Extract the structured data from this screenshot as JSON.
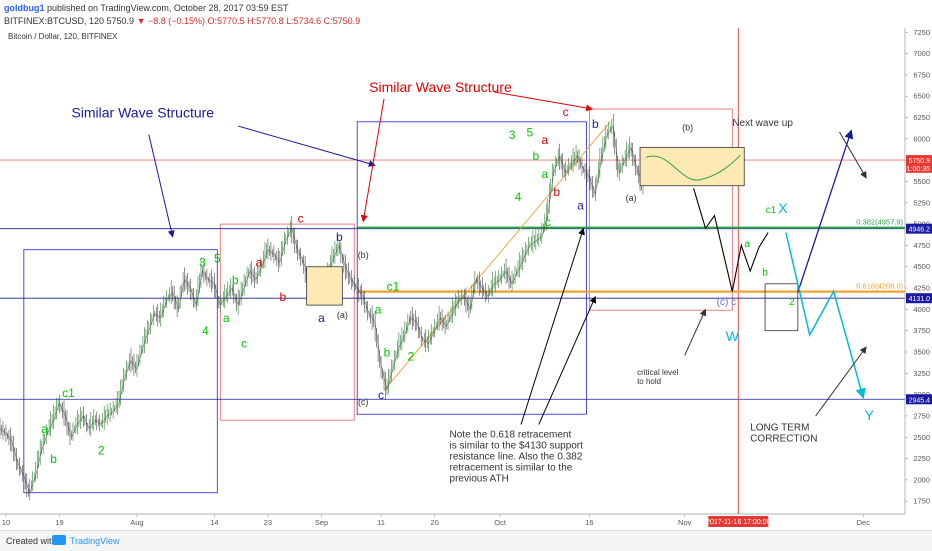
{
  "header": {
    "author": "goldbug1",
    "publish_text": "published on TradingView.com, October 28, 2017 03:59 EST",
    "symbol_line": "BITFINEX:BTCUSD, 120  5750.9",
    "change": "▼ −8.8 (−0.15%)",
    "ohlc": "O:5770.5 H:5770.8 L:5734.6 C:5750.9"
  },
  "footer": {
    "created_with": "Created with",
    "brand": "TradingView"
  },
  "colors": {
    "green": "#00c800",
    "red": "#e00000",
    "blue": "#1a1aa0",
    "cyan": "#00bcd4",
    "orange": "#f0a030",
    "fib_green": "#2e9e4a"
  },
  "chart_data": {
    "type": "candlestick",
    "title": "Bitcoin / Dollar, 120, BITFINEX",
    "y_ticks": [
      1750,
      2000,
      2250,
      2500,
      2750,
      3000,
      3250,
      3500,
      3750,
      4000,
      4250,
      4500,
      4750,
      5000,
      5250,
      5500,
      5750,
      6000,
      6250,
      6500,
      6750,
      7000,
      7250
    ],
    "ylim": [
      1600,
      7300
    ],
    "x_ticks": [
      {
        "label": "10",
        "x": 0.0
      },
      {
        "label": "19",
        "x": 9.0
      },
      {
        "label": "Aug",
        "x": 22.0
      },
      {
        "label": "14",
        "x": 35.0
      },
      {
        "label": "23",
        "x": 44.0
      },
      {
        "label": "Sep",
        "x": 53.0
      },
      {
        "label": "11",
        "x": 63.0
      },
      {
        "label": "20",
        "x": 72.0
      },
      {
        "label": "Oct",
        "x": 83.0
      },
      {
        "label": "16",
        "x": 98.0
      },
      {
        "label": "Nov",
        "x": 114.0
      },
      {
        "label": "Dec",
        "x": 144.0
      }
    ],
    "x_range": [
      -1,
      151
    ],
    "price_tags": [
      {
        "value": "5750.9",
        "price": 5750.9,
        "color": "#e53935"
      },
      {
        "value": "01:00:35",
        "price": 5660,
        "color": "#e53935"
      },
      {
        "value": "4946.2",
        "price": 4946.2,
        "color": "#1a1aa0"
      },
      {
        "value": "4131.0",
        "price": 4131,
        "color": "#1a1aa0"
      },
      {
        "value": "2945.4",
        "price": 2945.4,
        "color": "#1a1aa0"
      }
    ],
    "date_tag": {
      "label": "2017-11-16 17:00:00",
      "x": 123.0
    },
    "hlines": [
      {
        "price": 5750.9,
        "color": "#e57373",
        "width": 0.8
      },
      {
        "price": 4946.2,
        "color": "#1a1aa0",
        "width": 0.8
      },
      {
        "price": 4131,
        "color": "#1a1aa0",
        "width": 0.8
      },
      {
        "price": 2945.4,
        "color": "#1a1aa0",
        "width": 0.8
      }
    ],
    "vlines": [
      {
        "x": 123.0,
        "color": "#e53935"
      }
    ],
    "price_path": [
      [
        -1,
        2600
      ],
      [
        0,
        2550
      ],
      [
        1,
        2450
      ],
      [
        2,
        2200
      ],
      [
        3,
        2050
      ],
      [
        4,
        1850
      ],
      [
        5,
        2050
      ],
      [
        6,
        2350
      ],
      [
        7,
        2550
      ],
      [
        8,
        2700
      ],
      [
        9,
        2900
      ],
      [
        10,
        2750
      ],
      [
        11,
        2500
      ],
      [
        12,
        2650
      ],
      [
        13,
        2750
      ],
      [
        14,
        2600
      ],
      [
        15,
        2700
      ],
      [
        16,
        2650
      ],
      [
        17,
        2750
      ],
      [
        18,
        2800
      ],
      [
        19,
        2900
      ],
      [
        20,
        3200
      ],
      [
        21,
        3400
      ],
      [
        22,
        3300
      ],
      [
        23,
        3550
      ],
      [
        24,
        3750
      ],
      [
        25,
        3950
      ],
      [
        26,
        3900
      ],
      [
        27,
        4100
      ],
      [
        28,
        4200
      ],
      [
        29,
        4000
      ],
      [
        30,
        4350
      ],
      [
        31,
        4250
      ],
      [
        32,
        4050
      ],
      [
        33,
        4450
      ],
      [
        34,
        4350
      ],
      [
        35,
        4300
      ],
      [
        36,
        4050
      ],
      [
        37,
        4150
      ],
      [
        38,
        4250
      ],
      [
        39,
        4050
      ],
      [
        40,
        4250
      ],
      [
        41,
        4450
      ],
      [
        42,
        4350
      ],
      [
        43,
        4500
      ],
      [
        44,
        4700
      ],
      [
        45,
        4650
      ],
      [
        46,
        4550
      ],
      [
        47,
        4800
      ],
      [
        48,
        4950
      ],
      [
        49,
        4700
      ],
      [
        50,
        4550
      ],
      [
        51,
        4300
      ],
      [
        52,
        4350
      ],
      [
        53,
        4150
      ],
      [
        54,
        4400
      ],
      [
        55,
        4600
      ],
      [
        56,
        4750
      ],
      [
        57,
        4500
      ],
      [
        58,
        4350
      ],
      [
        59,
        4250
      ],
      [
        60,
        4150
      ],
      [
        61,
        3950
      ],
      [
        62,
        3850
      ],
      [
        63,
        3350
      ],
      [
        64,
        3050
      ],
      [
        65,
        3300
      ],
      [
        66,
        3550
      ],
      [
        67,
        3700
      ],
      [
        68,
        3900
      ],
      [
        69,
        3850
      ],
      [
        70,
        3650
      ],
      [
        71,
        3600
      ],
      [
        72,
        3750
      ],
      [
        73,
        3900
      ],
      [
        74,
        3800
      ],
      [
        75,
        3950
      ],
      [
        76,
        4100
      ],
      [
        77,
        4150
      ],
      [
        78,
        4000
      ],
      [
        79,
        4350
      ],
      [
        80,
        4250
      ],
      [
        81,
        4150
      ],
      [
        82,
        4300
      ],
      [
        83,
        4350
      ],
      [
        84,
        4450
      ],
      [
        85,
        4300
      ],
      [
        86,
        4450
      ],
      [
        87,
        4600
      ],
      [
        88,
        4750
      ],
      [
        89,
        4800
      ],
      [
        90,
        4850
      ],
      [
        91,
        5100
      ],
      [
        92,
        5600
      ],
      [
        93,
        5800
      ],
      [
        94,
        5600
      ],
      [
        95,
        5700
      ],
      [
        96,
        5800
      ],
      [
        97,
        5650
      ],
      [
        98,
        5550
      ],
      [
        99,
        5350
      ],
      [
        100,
        5750
      ],
      [
        101,
        6050
      ],
      [
        102,
        6150
      ],
      [
        103,
        5600
      ],
      [
        104,
        5750
      ],
      [
        105,
        5900
      ],
      [
        106,
        5650
      ],
      [
        107,
        5450
      ],
      [
        108,
        5750
      ],
      [
        109,
        5750
      ]
    ],
    "boxes": [
      {
        "x0": 3.0,
        "x1": 35.5,
        "p0": 1850,
        "p1": 4700,
        "color": "#3a3ae0"
      },
      {
        "x0": 36.0,
        "x1": 58.5,
        "p0": 2700,
        "p1": 5000,
        "color": "#e57373"
      },
      {
        "x0": 59.0,
        "x1": 97.5,
        "p0": 2770,
        "p1": 6200,
        "color": "#3a3ae0"
      },
      {
        "x0": 98.0,
        "x1": 122.0,
        "p0": 3990,
        "p1": 6350,
        "color": "#e57373"
      }
    ],
    "small_boxes": [
      {
        "x0": 50.5,
        "x1": 56.5,
        "p0": 4050,
        "p1": 4500,
        "fill": "#fde9b3",
        "stroke": "#333"
      },
      {
        "x0": 106.5,
        "x1": 124.0,
        "p0": 5450,
        "p1": 5900,
        "fill": "#fde9b3",
        "stroke": "#333"
      },
      {
        "x0": 127.5,
        "x1": 133.0,
        "p0": 3750,
        "p1": 4300,
        "fill": "none",
        "stroke": "#333"
      }
    ],
    "fib_lines": [
      {
        "price": 4957.9,
        "x0": 59.0,
        "x1": 151.0,
        "color": "#2e9e4a",
        "label": "0.382(4957.9)"
      },
      {
        "price": 4208.0,
        "x0": 59.0,
        "x1": 151.0,
        "color": "#f0a030",
        "label": "0.618(4208.0)"
      }
    ],
    "fib_diagonal": [
      [
        63.5,
        3050
      ],
      [
        101.5,
        6200
      ]
    ],
    "wave_labels": [
      {
        "text": "a",
        "x": 6.5,
        "p": 2550,
        "color": "#00c800",
        "size": 12
      },
      {
        "text": "b",
        "x": 8.0,
        "p": 2200,
        "color": "#00c800",
        "size": 12
      },
      {
        "text": "c1",
        "x": 10.5,
        "p": 2970,
        "color": "#00c800",
        "size": 12
      },
      {
        "text": "2",
        "x": 16.0,
        "p": 2300,
        "color": "#00c800",
        "size": 12
      },
      {
        "text": "3",
        "x": 33.0,
        "p": 4500,
        "color": "#00c800",
        "size": 12
      },
      {
        "text": "5",
        "x": 35.5,
        "p": 4550,
        "color": "#00c800",
        "size": 12
      },
      {
        "text": "b",
        "x": 38.5,
        "p": 4300,
        "color": "#00c800",
        "size": 12
      },
      {
        "text": "a",
        "x": 37.0,
        "p": 3850,
        "color": "#00c800",
        "size": 12
      },
      {
        "text": "4",
        "x": 33.5,
        "p": 3700,
        "color": "#00c800",
        "size": 12
      },
      {
        "text": "c",
        "x": 40.0,
        "p": 3550,
        "color": "#00c800",
        "size": 12
      },
      {
        "text": "c",
        "x": 49.5,
        "p": 5020,
        "color": "#e00000",
        "size": 12
      },
      {
        "text": "a",
        "x": 42.5,
        "p": 4500,
        "color": "#e00000",
        "size": 12
      },
      {
        "text": "b",
        "x": 46.5,
        "p": 4100,
        "color": "#e00000",
        "size": 12
      },
      {
        "text": "b",
        "x": 56.0,
        "p": 4800,
        "color": "#1a1aa0",
        "size": 12
      },
      {
        "text": "a",
        "x": 53.0,
        "p": 3850,
        "color": "#1a1aa0",
        "size": 12
      },
      {
        "text": "(b)",
        "x": 60.0,
        "p": 4600,
        "color": "#333",
        "size": 9
      },
      {
        "text": "(a)",
        "x": 56.5,
        "p": 3900,
        "color": "#333",
        "size": 9
      },
      {
        "text": "(c)",
        "x": 60.0,
        "p": 2880,
        "color": "#333",
        "size": 9
      },
      {
        "text": "c",
        "x": 63.0,
        "p": 2950,
        "color": "#1a1aa0",
        "size": 12
      },
      {
        "text": "a",
        "x": 62.5,
        "p": 3950,
        "color": "#00c800",
        "size": 12
      },
      {
        "text": "c1",
        "x": 65.0,
        "p": 4220,
        "color": "#00c800",
        "size": 12
      },
      {
        "text": "b",
        "x": 64.0,
        "p": 3450,
        "color": "#00c800",
        "size": 12
      },
      {
        "text": "2",
        "x": 68.0,
        "p": 3400,
        "color": "#00c800",
        "size": 12
      },
      {
        "text": "3",
        "x": 85.0,
        "p": 6000,
        "color": "#00c800",
        "size": 12
      },
      {
        "text": "5",
        "x": 88.0,
        "p": 6030,
        "color": "#00c800",
        "size": 12
      },
      {
        "text": "b",
        "x": 89.0,
        "p": 5750,
        "color": "#00c800",
        "size": 12
      },
      {
        "text": "a",
        "x": 90.5,
        "p": 5540,
        "color": "#00c800",
        "size": 12
      },
      {
        "text": "4",
        "x": 86.0,
        "p": 5270,
        "color": "#00c800",
        "size": 12
      },
      {
        "text": "c",
        "x": 91.0,
        "p": 4980,
        "color": "#00c800",
        "size": 12
      },
      {
        "text": "c",
        "x": 94.0,
        "p": 6270,
        "color": "#e00000",
        "size": 12
      },
      {
        "text": "a",
        "x": 90.5,
        "p": 5940,
        "color": "#e00000",
        "size": 12
      },
      {
        "text": "b",
        "x": 92.5,
        "p": 5330,
        "color": "#e00000",
        "size": 12
      },
      {
        "text": "b",
        "x": 99.0,
        "p": 6130,
        "color": "#1a1aa0",
        "size": 12
      },
      {
        "text": "a",
        "x": 96.5,
        "p": 5170,
        "color": "#1a1aa0",
        "size": 12
      },
      {
        "text": "(b)",
        "x": 114.5,
        "p": 6100,
        "color": "#333",
        "size": 9
      },
      {
        "text": "(a)",
        "x": 105.0,
        "p": 5270,
        "color": "#333",
        "size": 9
      },
      {
        "text": "(c) c",
        "x": 121.0,
        "p": 4050,
        "color": "#6a6ad0",
        "size": 10
      },
      {
        "text": "W",
        "x": 122.0,
        "p": 3630,
        "color": "#00bcd4",
        "size": 14
      },
      {
        "text": "a",
        "x": 124.5,
        "p": 4730,
        "color": "#00c800",
        "size": 10
      },
      {
        "text": "b",
        "x": 127.5,
        "p": 4400,
        "color": "#00c800",
        "size": 10
      },
      {
        "text": "2",
        "x": 132.0,
        "p": 4050,
        "color": "#00c800",
        "size": 10
      },
      {
        "text": "c1",
        "x": 128.5,
        "p": 5130,
        "color": "#00c800",
        "size": 10
      },
      {
        "text": "X",
        "x": 130.5,
        "p": 5130,
        "color": "#00bcd4",
        "size": 14
      },
      {
        "text": "Y",
        "x": 145.0,
        "p": 2700,
        "color": "#00bcd4",
        "size": 14
      }
    ],
    "black_path": [
      [
        115.5,
        5420
      ],
      [
        117.5,
        4950
      ],
      [
        119.0,
        5100
      ],
      [
        122.0,
        4210
      ],
      [
        123.5,
        4750
      ],
      [
        125.0,
        4450
      ],
      [
        126.5,
        4730
      ],
      [
        128.0,
        4900
      ]
    ],
    "blue_arrow": [
      [
        133.0,
        4200
      ],
      [
        142.0,
        6100
      ]
    ],
    "cyan_path": [
      [
        131.0,
        4900
      ],
      [
        135.0,
        3700
      ],
      [
        139.0,
        4210
      ],
      [
        144.0,
        2960
      ]
    ],
    "annotations": [
      {
        "lines": [
          "Similar Wave Structure"
        ],
        "x": 11.0,
        "p": 6250,
        "color": "#1a1aa0",
        "size": 14
      },
      {
        "lines": [
          "Similar Wave Structure"
        ],
        "x": 61.0,
        "p": 6550,
        "color": "#e00000",
        "size": 14
      },
      {
        "lines": [
          "Next wave up"
        ],
        "x": 122.0,
        "p": 6150,
        "color": "#333",
        "size": 10
      },
      {
        "lines": [
          "critical level",
          "to hold"
        ],
        "x": 106.0,
        "p": 3230,
        "color": "#333",
        "size": 8
      },
      {
        "lines": [
          "Note the 0.618 retracement",
          "is similar to the $4130 support",
          "resistance line. Also the 0.382",
          "retracement is similar to the",
          "previous ATH"
        ],
        "x": 74.5,
        "p": 2500,
        "color": "#333",
        "size": 10
      },
      {
        "lines": [
          "LONG TERM",
          "CORRECTION"
        ],
        "x": 125.0,
        "p": 2580,
        "color": "#333",
        "size": 10
      }
    ],
    "arrows": [
      {
        "from": [
          24.0,
          6050
        ],
        "to": [
          28.0,
          4850
        ],
        "color": "#1a1aa0"
      },
      {
        "from": [
          39.0,
          6150
        ],
        "to": [
          62.0,
          5690
        ],
        "color": "#1a1aa0"
      },
      {
        "from": [
          63.5,
          6470
        ],
        "to": [
          60.0,
          5030
        ],
        "color": "#e00000"
      },
      {
        "from": [
          82.0,
          6550
        ],
        "to": [
          98.5,
          6350
        ],
        "color": "#e00000"
      },
      {
        "from": [
          86.5,
          2650
        ],
        "to": [
          97.0,
          4950
        ],
        "color": "#000"
      },
      {
        "from": [
          89.5,
          2650
        ],
        "to": [
          99.0,
          4150
        ],
        "color": "#000"
      },
      {
        "from": [
          140.0,
          6080
        ],
        "to": [
          144.5,
          5540
        ],
        "color": "#333"
      },
      {
        "from": [
          114.0,
          3460
        ],
        "to": [
          117.5,
          4000
        ],
        "color": "#333"
      },
      {
        "from": [
          136.0,
          2750
        ],
        "to": [
          144.5,
          3560
        ],
        "color": "#333"
      }
    ]
  }
}
